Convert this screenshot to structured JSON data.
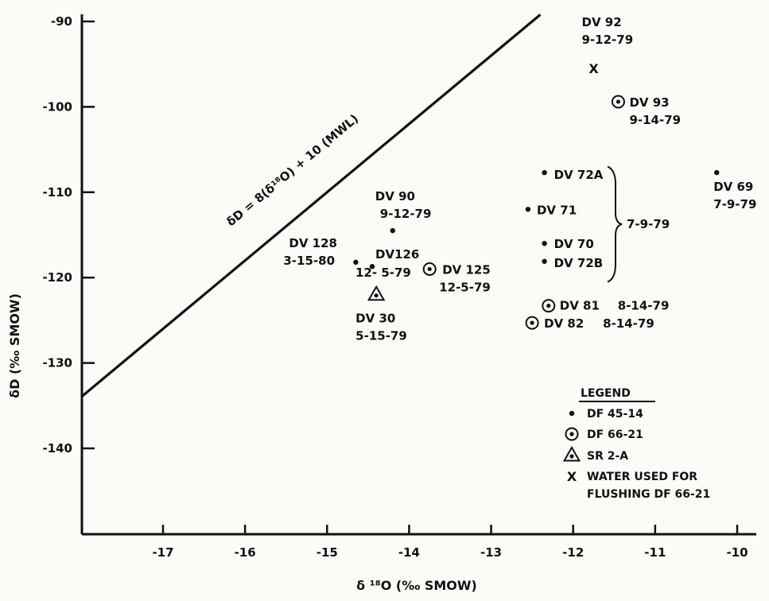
{
  "chart_data": {
    "type": "scatter",
    "title": "",
    "xlabel": "δ ¹⁸O (‰ SMOW)",
    "ylabel": "δD (‰ SMOW)",
    "xlim": [
      -18,
      -10
    ],
    "ylim": [
      -150,
      -90
    ],
    "x_ticks": [
      -17,
      -16,
      -15,
      -14,
      -13,
      -12,
      -11,
      -10
    ],
    "x_tick_labels": [
      "-17",
      "-16",
      "-15",
      "-14",
      "-13",
      "-12",
      "-11",
      "-10"
    ],
    "y_ticks": [
      -90,
      -100,
      -110,
      -120,
      -130,
      -140
    ],
    "y_tick_labels": [
      "-90",
      "-100",
      "-110",
      "-120",
      "-130",
      "-140"
    ],
    "grid": false,
    "mwl": {
      "label": "δD = 8(δ¹⁸O) + 10 (MWL)",
      "slope": 8,
      "intercept": 10,
      "x_range": [
        -18,
        -12.4
      ]
    },
    "series": [
      {
        "name": "DF 45-14",
        "marker": "dot",
        "points": [
          {
            "x": -14.2,
            "y": -114.5,
            "label": "DV 90",
            "date": "9-12-79"
          },
          {
            "x": -14.65,
            "y": -118.2,
            "label": "DV 128",
            "date": "3-15-80"
          },
          {
            "x": -14.45,
            "y": -118.7,
            "label": "DV126",
            "date": "12- 5-79"
          },
          {
            "x": -12.35,
            "y": -107.7,
            "label": "DV 72A",
            "date": ""
          },
          {
            "x": -12.55,
            "y": -112.0,
            "label": "DV 71",
            "date": ""
          },
          {
            "x": -12.35,
            "y": -116.0,
            "label": "DV 70",
            "date": ""
          },
          {
            "x": -12.35,
            "y": -118.1,
            "label": "DV 72B",
            "date": ""
          },
          {
            "x": -10.25,
            "y": -107.7,
            "label": "DV 69",
            "date": "7-9-79"
          }
        ]
      },
      {
        "name": "DF 66-21",
        "marker": "circle-dot",
        "points": [
          {
            "x": -11.45,
            "y": -99.4,
            "label": "DV 93",
            "date": "9-14-79"
          },
          {
            "x": -13.75,
            "y": -119.0,
            "label": "DV 125",
            "date": "12-5-79"
          },
          {
            "x": -12.3,
            "y": -123.3,
            "label": "DV 81",
            "date": "8-14-79"
          },
          {
            "x": -12.5,
            "y": -125.3,
            "label": "DV 82",
            "date": "8-14-79"
          }
        ]
      },
      {
        "name": "SR 2-A",
        "marker": "triangle-dot",
        "points": [
          {
            "x": -14.4,
            "y": -122.0,
            "label": "DV 30",
            "date": "5-15-79"
          }
        ]
      },
      {
        "name": "WATER USED FOR FLUSHING DF 66-21",
        "marker": "x",
        "points": [
          {
            "x": -11.75,
            "y": -95.5,
            "label": "DV 92",
            "date": "9-12-79"
          }
        ]
      }
    ],
    "brace_group": {
      "members": [
        "DV 72A",
        "DV 71",
        "DV 70",
        "DV 72B"
      ],
      "date": "7-9-79"
    },
    "legend": {
      "title": "LEGEND",
      "position": "bottom-right",
      "entries": [
        {
          "marker": "dot",
          "lines": [
            "DF 45-14"
          ]
        },
        {
          "marker": "circle-dot",
          "lines": [
            "DF 66-21"
          ]
        },
        {
          "marker": "triangle-dot",
          "lines": [
            "SR 2-A"
          ]
        },
        {
          "marker": "x",
          "lines": [
            "WATER USED FOR",
            "FLUSHING DF 66-21"
          ]
        }
      ]
    }
  }
}
